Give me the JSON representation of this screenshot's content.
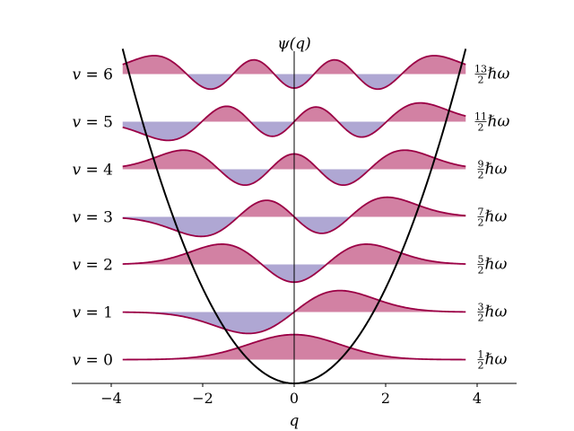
{
  "chart_data": {
    "type": "line",
    "title": "ψ(q)",
    "xlabel": "q",
    "ylabel": "",
    "xlim": [
      -4.8,
      4.9
    ],
    "x_data_range": [
      -3.75,
      3.75
    ],
    "xticks": [
      "−4",
      "−2",
      "0",
      "2",
      "4"
    ],
    "xtick_values": [
      -4,
      -2,
      0,
      2,
      4
    ],
    "potential": "q^2/2",
    "wavefunction_scale": 0.7,
    "levels": [
      {
        "v": 0,
        "label": "v = 0",
        "energy": 0.5,
        "energy_num": "1",
        "energy_den": "2",
        "energy_unit": "ℏω"
      },
      {
        "v": 1,
        "label": "v = 1",
        "energy": 1.5,
        "energy_num": "3",
        "energy_den": "2",
        "energy_unit": "ℏω"
      },
      {
        "v": 2,
        "label": "v = 2",
        "energy": 2.5,
        "energy_num": "5",
        "energy_den": "2",
        "energy_unit": "ℏω"
      },
      {
        "v": 3,
        "label": "v = 3",
        "energy": 3.5,
        "energy_num": "7",
        "energy_den": "2",
        "energy_unit": "ℏω"
      },
      {
        "v": 4,
        "label": "v = 4",
        "energy": 4.5,
        "energy_num": "9",
        "energy_den": "2",
        "energy_unit": "ℏω"
      },
      {
        "v": 5,
        "label": "v = 5",
        "energy": 5.5,
        "energy_num": "11",
        "energy_den": "2",
        "energy_unit": "ℏω"
      },
      {
        "v": 6,
        "label": "v = 6",
        "energy": 6.5,
        "energy_num": "13",
        "energy_den": "2",
        "energy_unit": "ℏω"
      }
    ],
    "colors": {
      "line": "#9b0045",
      "positive_fill": "#c05080",
      "negative_fill": "#7a6cb5",
      "potential": "#000000"
    }
  }
}
